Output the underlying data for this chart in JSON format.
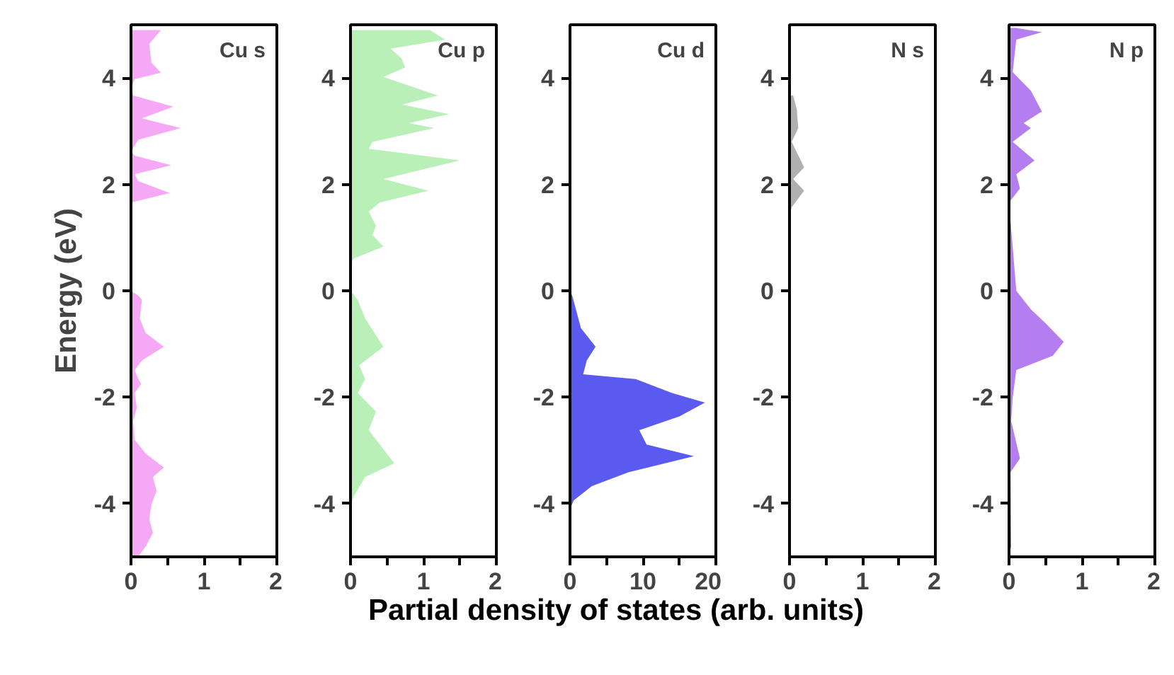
{
  "chart_data": [
    {
      "type": "area",
      "orientation": "horizontal",
      "title": "Cu s",
      "ylabel": "Energy (eV)",
      "xlim": [
        0,
        2
      ],
      "ylim": [
        -5,
        5
      ],
      "xticks": [
        0,
        {
          "value": 0.5,
          "label": null
        },
        1,
        {
          "value": 1.5,
          "label": null
        },
        2
      ],
      "yticks": [
        -4,
        -2,
        0,
        2,
        4
      ],
      "x": [
        4.9,
        4.64,
        4.29,
        4.1,
        3.98,
        3.8,
        3.67,
        3.46,
        3.24,
        3.06,
        2.84,
        2.62,
        2.54,
        2.36,
        2.19,
        2.06,
        1.84,
        1.66,
        0,
        -0.09,
        -0.17,
        -0.52,
        -0.79,
        -1.05,
        -1.31,
        -1.49,
        -1.66,
        -1.75,
        -1.92,
        -2.19,
        -2.45,
        -2.8,
        -3.06,
        -3.32,
        -3.5,
        -3.76,
        -4.02,
        -4.29,
        -4.55,
        -4.81,
        -4.99
      ],
      "series": [
        {
          "color": "#f5a8f5",
          "values": [
            0.41,
            0.25,
            0.28,
            0.41,
            0.05,
            0,
            0.03,
            0.58,
            0.15,
            0.68,
            0.1,
            0,
            0.05,
            0.55,
            0.05,
            0.1,
            0.53,
            0,
            0,
            0.1,
            0.15,
            0.12,
            0.2,
            0.45,
            0.15,
            0.05,
            0.1,
            0.14,
            0.05,
            0.08,
            0.03,
            0.05,
            0.2,
            0.45,
            0.3,
            0.35,
            0.28,
            0.25,
            0.3,
            0.2,
            0.1
          ]
        }
      ]
    },
    {
      "type": "area",
      "orientation": "horizontal",
      "title": "Cu p",
      "xlim": [
        0,
        2
      ],
      "ylim": [
        -5,
        5
      ],
      "xticks": [
        0,
        {
          "value": 0.5,
          "label": null
        },
        1,
        {
          "value": 1.5,
          "label": null
        },
        2
      ],
      "yticks": [
        -4,
        -2,
        0,
        2,
        4
      ],
      "x": [
        4.9,
        4.72,
        4.55,
        4.37,
        4.2,
        4.02,
        3.67,
        3.5,
        3.32,
        3.15,
        3.06,
        2.8,
        2.67,
        2.45,
        2.1,
        1.88,
        1.66,
        1.49,
        1.22,
        1.05,
        0.83,
        0.61,
        0.52,
        0,
        -0.17,
        -0.52,
        -1.05,
        -1.4,
        -1.66,
        -1.92,
        -2.27,
        -2.62,
        -3.24,
        -3.5,
        -3.85,
        -4.02
      ],
      "series": [
        {
          "color": "#b8f0b8",
          "values": [
            1.09,
            1.3,
            0.55,
            0.7,
            0.75,
            0.45,
            1.2,
            0.7,
            1.35,
            0.8,
            1.15,
            0.3,
            0.25,
            1.5,
            0.45,
            1.07,
            0.4,
            0.25,
            0.35,
            0.3,
            0.45,
            0.05,
            0,
            0,
            0.1,
            0.2,
            0.45,
            0.12,
            0.2,
            0.1,
            0.35,
            0.25,
            0.6,
            0.2,
            0.05,
            0
          ]
        }
      ]
    },
    {
      "type": "area",
      "orientation": "horizontal",
      "title": "Cu d",
      "xlim": [
        0,
        20
      ],
      "ylim": [
        -5,
        5
      ],
      "xticks": [
        0,
        {
          "value": 5,
          "label": null
        },
        10,
        {
          "value": 15,
          "label": null
        },
        20
      ],
      "yticks": [
        -4,
        -2,
        0,
        2,
        4
      ],
      "x": [
        2.5,
        2.4,
        2.3,
        2.1,
        2.0,
        1.9,
        0,
        -0.09,
        -0.7,
        -1.05,
        -1.31,
        -1.57,
        -1.66,
        -1.92,
        -2.1,
        -2.36,
        -2.62,
        -2.89,
        -3.11,
        -3.41,
        -3.67,
        -3.94,
        -4.11
      ],
      "series": [
        {
          "color": "#5a5af0",
          "values": [
            0,
            0.2,
            0,
            0,
            0.2,
            0,
            0,
            0.3,
            1.5,
            3.5,
            2.3,
            1.8,
            9,
            14,
            18.5,
            15,
            9.5,
            10.5,
            17,
            8,
            3,
            0.5,
            0
          ]
        }
      ]
    },
    {
      "type": "area",
      "orientation": "horizontal",
      "title": "N s",
      "xlim": [
        0,
        2
      ],
      "ylim": [
        -5,
        5
      ],
      "xticks": [
        0,
        {
          "value": 0.5,
          "label": null
        },
        1,
        {
          "value": 1.5,
          "label": null
        },
        2
      ],
      "yticks": [
        -4,
        -2,
        0,
        2,
        4
      ],
      "x": [
        3.67,
        3.41,
        3.06,
        2.8,
        2.32,
        2.1,
        1.88,
        1.57,
        1.4
      ],
      "series": [
        {
          "color": "#b0b0b0",
          "values": [
            0.05,
            0.1,
            0.12,
            0.03,
            0.2,
            0.05,
            0.2,
            0.03,
            0
          ]
        }
      ]
    },
    {
      "type": "area",
      "orientation": "horizontal",
      "title": "N p",
      "xlim": [
        0,
        2
      ],
      "ylim": [
        -5,
        5
      ],
      "xticks": [
        0,
        {
          "value": 0.5,
          "label": null
        },
        1,
        {
          "value": 1.5,
          "label": null
        },
        2
      ],
      "yticks": [
        -4,
        -2,
        0,
        2,
        4
      ],
      "x": [
        4.94,
        4.86,
        4.72,
        4.11,
        3.76,
        3.37,
        3.15,
        3.06,
        2.8,
        2.45,
        2.19,
        1.92,
        1.66,
        0,
        -0.35,
        -0.61,
        -0.96,
        -1.22,
        -1.49,
        -2.01,
        -2.45,
        -3.15,
        -3.41,
        -4.81,
        -4.95
      ],
      "series": [
        {
          "color": "#b57ef0",
          "values": [
            0.1,
            0.45,
            0.1,
            0.05,
            0.3,
            0.45,
            0.2,
            0.3,
            0.05,
            0.35,
            0.1,
            0.15,
            0,
            0.1,
            0.3,
            0.5,
            0.75,
            0.6,
            0.1,
            0.05,
            0.03,
            0.15,
            0.02,
            0.03,
            0
          ]
        }
      ]
    },
    {
      "type": "other",
      "xlabel": "Partial density of states (arb. units)"
    }
  ]
}
